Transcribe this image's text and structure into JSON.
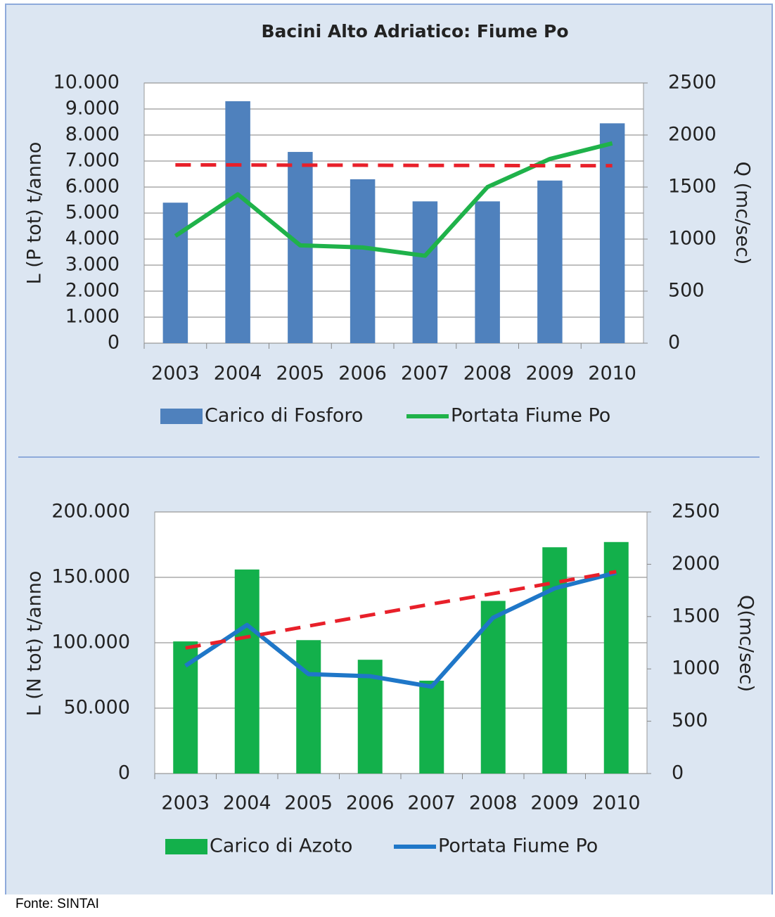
{
  "chart_data": [
    {
      "type": "bar",
      "title": "Bacini Alto Adriatico: Fiume Po",
      "y_label": "L (P tot) t/anno",
      "y2_label": "Q (mc/sec)",
      "categories": [
        "2003",
        "2004",
        "2005",
        "2006",
        "2007",
        "2008",
        "2009",
        "2010"
      ],
      "series": [
        {
          "name": "Carico di Fosforo",
          "type": "bar",
          "color": "#4f81bd",
          "values": [
            5400,
            9300,
            7350,
            6300,
            5450,
            5450,
            6250,
            8450
          ]
        },
        {
          "name": "Portata Fiume Po",
          "type": "line",
          "axis": "y2",
          "color": "#1fb24a",
          "values": [
            1030,
            1430,
            940,
            920,
            840,
            1500,
            1770,
            1920
          ]
        },
        {
          "type": "line",
          "dashed": true,
          "color": "#e8202a",
          "values": [
            6850,
            6850,
            6840,
            6840,
            6830,
            6830,
            6820,
            6820
          ]
        }
      ],
      "ylim": [
        0,
        10000
      ],
      "yticks": [
        0,
        {
          "value": 1000,
          "label": "1.000"
        },
        {
          "value": 2000,
          "label": "2.000"
        },
        {
          "value": 3000,
          "label": "3.000"
        },
        {
          "value": 4000,
          "label": "4.000"
        },
        {
          "value": 5000,
          "label": "5.000"
        },
        {
          "value": 6000,
          "label": "6.000"
        },
        {
          "value": 7000,
          "label": "7.000"
        },
        {
          "value": 8000,
          "label": "8.000"
        },
        {
          "value": 9000,
          "label": "9.000"
        },
        {
          "value": 10000,
          "label": "10.000"
        }
      ],
      "y2lim": [
        0,
        2500
      ],
      "y2ticks": [
        0,
        500,
        1000,
        1500,
        2000,
        2500
      ],
      "grid": true,
      "legend": "bottom"
    },
    {
      "type": "bar",
      "y_label": "L (N tot) t/anno",
      "y2_label": "Q(mc/sec)",
      "categories": [
        "2003",
        "2004",
        "2005",
        "2006",
        "2007",
        "2008",
        "2009",
        "2010"
      ],
      "series": [
        {
          "name": "Carico di Azoto",
          "type": "bar",
          "color": "#13b04b",
          "values": [
            101000,
            156000,
            102000,
            87000,
            71000,
            132000,
            173000,
            177000
          ]
        },
        {
          "name": "Portata Fiume Po",
          "type": "line",
          "axis": "y2",
          "color": "#1f77c8",
          "values": [
            1030,
            1420,
            950,
            930,
            830,
            1490,
            1770,
            1920
          ]
        },
        {
          "type": "line",
          "axis": "y2",
          "dashed": true,
          "color": "#e8202a",
          "values": [
            1200,
            1305,
            1410,
            1515,
            1620,
            1720,
            1825,
            1930
          ]
        }
      ],
      "ylim": [
        0,
        200000
      ],
      "yticks": [
        0,
        {
          "value": 50000,
          "label": "50.000"
        },
        {
          "value": 100000,
          "label": "100.000"
        },
        {
          "value": 150000,
          "label": "150.000"
        },
        {
          "value": 200000,
          "label": "200.000"
        }
      ],
      "y2lim": [
        0,
        2500
      ],
      "y2ticks": [
        0,
        500,
        1000,
        1500,
        2000,
        2500
      ],
      "grid": true,
      "legend": "bottom"
    }
  ],
  "source": "Fonte: SINTAI"
}
